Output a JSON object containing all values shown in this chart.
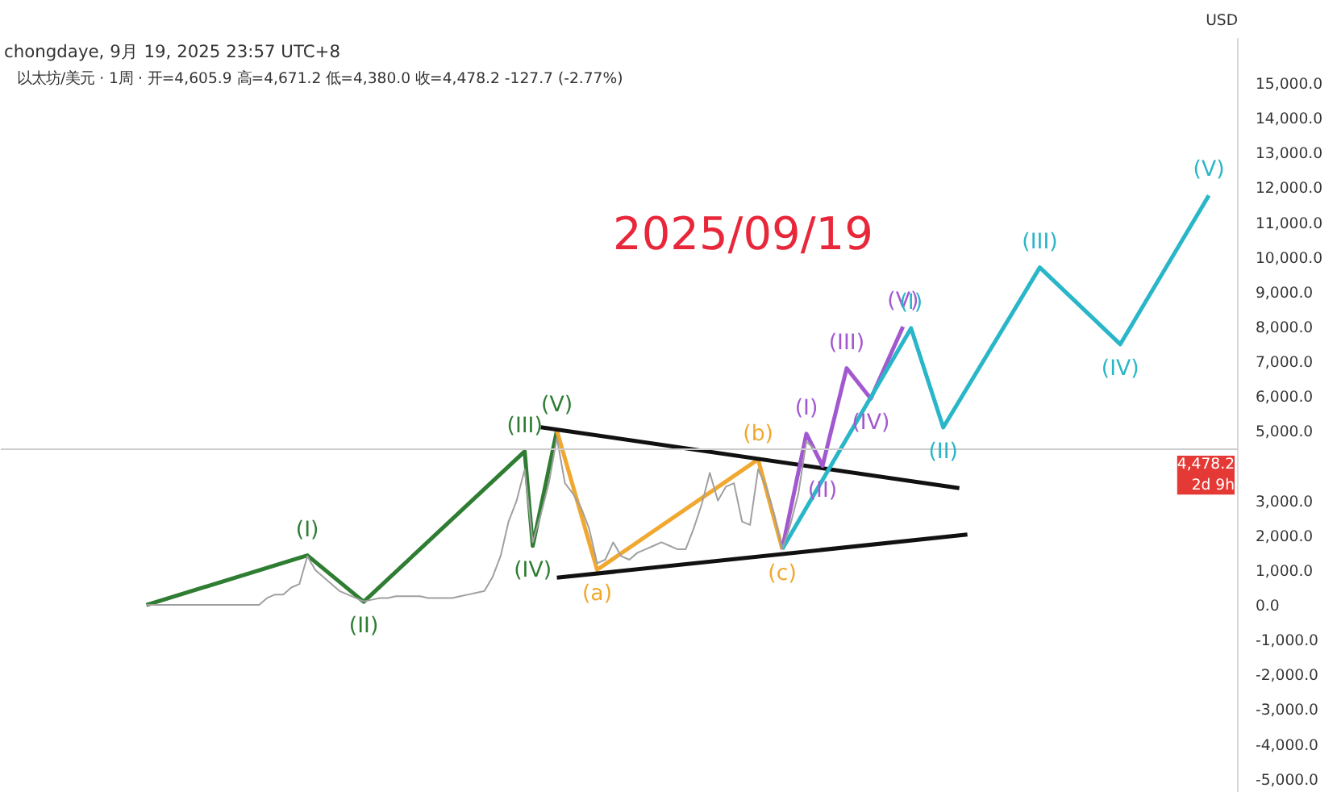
{
  "chart_data": {
    "type": "line",
    "title": "chongdaye, 9月 19, 2025 23:57 UTC+8",
    "subtitle": "以太坊/美元 · 1周 · 开=4,605.9 高=4,671.2 低=4,380.0 收=4,478.2 -127.7 (-2.77%)",
    "ylabel": "USD",
    "categories": [
      null,
      null,
      null,
      null,
      null,
      null,
      null,
      null,
      null,
      null,
      null,
      null,
      null,
      null,
      null,
      null,
      null,
      null,
      null,
      null,
      null,
      null,
      null,
      null,
      null,
      null,
      null,
      null,
      null,
      null,
      null,
      null,
      null,
      null,
      null,
      null,
      null,
      null,
      null,
      null,
      null,
      null,
      null,
      null,
      null,
      null,
      null,
      null,
      null,
      null,
      null,
      null,
      null,
      null,
      null,
      null,
      null,
      null,
      null,
      null,
      null,
      null,
      null,
      null,
      null,
      null,
      null,
      null,
      null,
      null,
      null,
      null,
      null,
      null,
      null,
      null,
      null,
      null,
      null,
      null,
      null,
      null,
      null,
      null,
      null,
      null,
      null,
      null,
      null,
      null,
      null,
      null,
      null,
      null,
      null,
      null,
      null,
      null,
      null,
      null,
      null,
      null,
      null,
      null,
      null,
      null,
      null,
      null,
      null,
      null,
      null,
      null,
      null,
      null,
      null,
      null,
      null,
      null,
      null,
      null,
      null,
      null,
      null,
      null,
      null,
      null,
      null,
      null,
      null,
      null,
      null,
      null,
      null,
      null
    ],
    "ylim": [
      -5400,
      16300
    ],
    "yticks": [
      {
        "value": -5000,
        "label": "-5,000.0"
      },
      {
        "value": -4000,
        "label": "-4,000.0"
      },
      {
        "value": -3000,
        "label": "-3,000.0"
      },
      {
        "value": -2000,
        "label": "-2,000.0"
      },
      {
        "value": -1000,
        "label": "-1,000.0"
      },
      {
        "value": 0,
        "label": "0.0"
      },
      {
        "value": 1000,
        "label": "1,000.0"
      },
      {
        "value": 2000,
        "label": "2,000.0"
      },
      {
        "value": 3000,
        "label": "3,000.0"
      },
      {
        "value": 5000,
        "label": "5,000.0"
      },
      {
        "value": 6000,
        "label": "6,000.0"
      },
      {
        "value": 7000,
        "label": "7,000.0"
      },
      {
        "value": 8000,
        "label": "8,000.0"
      },
      {
        "value": 9000,
        "label": "9,000.0"
      },
      {
        "value": 10000,
        "label": "10,000.0"
      },
      {
        "value": 11000,
        "label": "11,000.0"
      },
      {
        "value": 12000,
        "label": "12,000.0"
      },
      {
        "value": 13000,
        "label": "13,000.0"
      },
      {
        "value": 14000,
        "label": "14,000.0"
      },
      {
        "value": 15000,
        "label": "15,000.0"
      }
    ],
    "tick_labels": "y",
    "grid": false,
    "line_style": "solid",
    "series": [
      {
        "color": "#a0a0a0",
        "values": [
          0,
          0,
          0,
          0,
          0,
          0,
          0,
          0,
          0,
          0,
          0,
          0,
          0,
          0,
          0,
          200,
          300,
          300,
          500,
          600,
          1400,
          1000,
          800,
          600,
          400,
          300,
          200,
          100,
          150,
          200,
          200,
          250,
          250,
          250,
          250,
          200,
          200,
          200,
          200,
          250,
          300,
          350,
          400,
          800,
          1400,
          2400,
          3000,
          3900,
          1800,
          2600,
          3500,
          4800,
          3500,
          3200,
          2800,
          2200,
          1200,
          1300,
          1800,
          1400,
          1300,
          1500,
          1600,
          1700,
          1800,
          1700,
          1600,
          1600,
          2200,
          2900,
          3800,
          3000,
          3400,
          3500,
          2400,
          2300,
          3900,
          3400,
          2600,
          1600,
          2300,
          3200,
          4700,
          4478,
          null,
          null,
          null,
          null,
          null,
          null,
          null,
          null,
          null,
          null,
          null,
          null,
          null,
          null,
          null,
          null,
          null,
          null,
          null,
          null,
          null,
          null,
          null,
          null,
          null,
          null,
          null,
          null,
          null,
          null,
          null,
          null,
          null,
          null,
          null,
          null,
          null,
          null,
          null,
          null,
          null,
          null,
          null,
          null,
          null,
          null,
          null,
          null,
          null,
          null
        ]
      },
      {
        "color": "#2e7d32",
        "values": [
          0,
          null,
          null,
          null,
          null,
          null,
          null,
          null,
          null,
          null,
          null,
          null,
          null,
          null,
          null,
          null,
          null,
          null,
          null,
          null,
          1425,
          null,
          null,
          null,
          null,
          null,
          null,
          92,
          null,
          null,
          null,
          null,
          null,
          null,
          null,
          null,
          null,
          null,
          null,
          null,
          null,
          null,
          null,
          null,
          null,
          null,
          null,
          4414,
          1700,
          null,
          null,
          5011,
          null,
          null,
          null,
          null,
          null,
          null,
          null,
          null,
          null,
          null,
          null,
          null,
          null,
          null,
          null,
          null,
          null,
          null,
          null,
          null,
          null,
          null,
          null,
          null,
          null,
          null,
          null,
          null,
          null,
          null,
          null,
          null,
          null,
          null,
          null,
          null,
          null,
          null,
          null,
          null,
          null,
          null,
          null,
          null,
          null,
          null,
          null,
          null,
          null,
          null,
          null,
          null,
          null,
          null,
          null,
          null,
          null,
          null,
          null,
          null,
          null,
          null,
          null,
          null,
          null,
          null,
          null,
          null,
          null,
          null,
          null,
          null,
          null,
          null,
          null,
          null,
          null,
          null,
          null,
          null,
          null,
          null
        ]
      },
      {
        "color": "#f0a830",
        "values": [
          null,
          null,
          null,
          null,
          null,
          null,
          null,
          null,
          null,
          null,
          null,
          null,
          null,
          null,
          null,
          null,
          null,
          null,
          null,
          null,
          null,
          null,
          null,
          null,
          null,
          null,
          null,
          null,
          null,
          null,
          null,
          null,
          null,
          null,
          null,
          null,
          null,
          null,
          null,
          null,
          null,
          null,
          null,
          null,
          null,
          null,
          null,
          null,
          null,
          null,
          null,
          5011,
          null,
          null,
          null,
          null,
          1011,
          null,
          null,
          null,
          null,
          null,
          null,
          null,
          null,
          null,
          null,
          null,
          null,
          null,
          null,
          null,
          null,
          null,
          null,
          null,
          4184,
          null,
          null,
          1609,
          null,
          null,
          null,
          null,
          null,
          null,
          null,
          null,
          null,
          null,
          null,
          null,
          null,
          null,
          null,
          null,
          null,
          null,
          null,
          null,
          null,
          null,
          null,
          null,
          null,
          null,
          null,
          null,
          null,
          null,
          null,
          null,
          null,
          null,
          null,
          null,
          null,
          null,
          null,
          null,
          null,
          null,
          null,
          null,
          null,
          null,
          null,
          null,
          null,
          null,
          null,
          null,
          null,
          null
        ]
      },
      {
        "color": "#111111",
        "values": [
          null,
          null,
          null,
          null,
          null,
          null,
          null,
          null,
          null,
          null,
          null,
          null,
          null,
          null,
          null,
          null,
          null,
          null,
          null,
          null,
          null,
          null,
          null,
          null,
          null,
          null,
          null,
          null,
          null,
          null,
          null,
          null,
          null,
          null,
          null,
          null,
          null,
          null,
          null,
          null,
          null,
          null,
          null,
          null,
          null,
          null,
          null,
          null,
          null,
          5110,
          null,
          null,
          null,
          null,
          null,
          null,
          null,
          null,
          null,
          null,
          null,
          null,
          null,
          null,
          null,
          null,
          null,
          null,
          null,
          null,
          null,
          null,
          null,
          null,
          null,
          null,
          null,
          null,
          null,
          null,
          null,
          null,
          null,
          null,
          null,
          null,
          null,
          null,
          null,
          null,
          null,
          null,
          null,
          null,
          null,
          null,
          null,
          null,
          null,
          null,
          null,
          3356,
          null,
          null,
          null,
          null,
          null,
          null,
          null,
          null,
          null,
          null,
          null,
          null,
          null,
          null,
          null,
          null,
          null,
          null,
          null,
          null,
          null,
          null,
          null,
          null,
          null,
          null,
          null,
          null,
          null,
          null,
          null,
          null
        ]
      },
      {
        "color": "#111111",
        "values": [
          null,
          null,
          null,
          null,
          null,
          null,
          null,
          null,
          null,
          null,
          null,
          null,
          null,
          null,
          null,
          null,
          null,
          null,
          null,
          null,
          null,
          null,
          null,
          null,
          null,
          null,
          null,
          null,
          null,
          null,
          null,
          null,
          null,
          null,
          null,
          null,
          null,
          null,
          null,
          null,
          null,
          null,
          null,
          null,
          null,
          null,
          null,
          null,
          null,
          null,
          null,
          782,
          null,
          null,
          null,
          null,
          null,
          null,
          null,
          null,
          null,
          null,
          null,
          null,
          null,
          null,
          null,
          null,
          null,
          null,
          null,
          null,
          null,
          null,
          null,
          null,
          null,
          null,
          null,
          null,
          null,
          null,
          null,
          null,
          null,
          null,
          null,
          null,
          null,
          null,
          null,
          null,
          null,
          null,
          null,
          null,
          null,
          null,
          null,
          null,
          null,
          null,
          2023,
          null,
          null,
          null,
          null,
          null,
          null,
          null,
          null,
          null,
          null,
          null,
          null,
          null,
          null,
          null,
          null,
          null,
          null,
          null,
          null,
          null,
          null,
          null,
          null,
          null,
          null,
          null,
          null,
          null,
          null,
          null
        ]
      },
      {
        "color": "#a259d0",
        "values": [
          null,
          null,
          null,
          null,
          null,
          null,
          null,
          null,
          null,
          null,
          null,
          null,
          null,
          null,
          null,
          null,
          null,
          null,
          null,
          null,
          null,
          null,
          null,
          null,
          null,
          null,
          null,
          null,
          null,
          null,
          null,
          null,
          null,
          null,
          null,
          null,
          null,
          null,
          null,
          null,
          null,
          null,
          null,
          null,
          null,
          null,
          null,
          null,
          null,
          null,
          null,
          null,
          null,
          null,
          null,
          null,
          null,
          null,
          null,
          null,
          null,
          null,
          null,
          null,
          null,
          null,
          null,
          null,
          null,
          null,
          null,
          null,
          null,
          null,
          null,
          null,
          null,
          null,
          null,
          1609,
          null,
          null,
          4920,
          null,
          4000,
          null,
          null,
          6805,
          null,
          null,
          5931,
          null,
          null,
          null,
          8000,
          null,
          null,
          null,
          null,
          null,
          null,
          null,
          null,
          null,
          null,
          null,
          null,
          null,
          null,
          null,
          null,
          null,
          null,
          null,
          null,
          null,
          null,
          null,
          null,
          null,
          null,
          null,
          null,
          null,
          null,
          null,
          null,
          null,
          null,
          null,
          null,
          null,
          null,
          null
        ]
      },
      {
        "color": "#29b6c8",
        "values": [
          null,
          null,
          null,
          null,
          null,
          null,
          null,
          null,
          null,
          null,
          null,
          null,
          null,
          null,
          null,
          null,
          null,
          null,
          null,
          null,
          null,
          null,
          null,
          null,
          null,
          null,
          null,
          null,
          null,
          null,
          null,
          null,
          null,
          null,
          null,
          null,
          null,
          null,
          null,
          null,
          null,
          null,
          null,
          null,
          null,
          null,
          null,
          null,
          null,
          null,
          null,
          null,
          null,
          null,
          null,
          null,
          null,
          null,
          null,
          null,
          null,
          null,
          null,
          null,
          null,
          null,
          null,
          null,
          null,
          null,
          null,
          null,
          null,
          null,
          null,
          null,
          null,
          null,
          null,
          1609,
          null,
          null,
          null,
          null,
          null,
          null,
          null,
          null,
          null,
          null,
          null,
          null,
          null,
          null,
          null,
          7954,
          null,
          null,
          null,
          5103,
          null,
          null,
          null,
          null,
          null,
          null,
          null,
          null,
          null,
          null,
          null,
          9701,
          null,
          null,
          null,
          null,
          null,
          null,
          null,
          null,
          null,
          7494,
          null,
          null,
          null,
          null,
          null,
          null,
          null,
          null,
          null,
          null,
          11770,
          null
        ]
      }
    ],
    "ref_lines": [
      {
        "axis": "y",
        "value": 4478.2,
        "label": "4,478.2\n2d 9h"
      }
    ],
    "annotations": [
      "2025/09/19",
      {
        "text": "(I)",
        "y": 1425
      },
      {
        "text": "(II)",
        "y": 92
      },
      {
        "text": "(III)",
        "y": 4414
      },
      {
        "text": "(IV)",
        "y": 1700
      },
      {
        "text": "(V)",
        "y": 5011
      },
      {
        "text": "(a)",
        "y": 1011
      },
      {
        "text": "(b)",
        "y": 4184
      },
      {
        "text": "(c)",
        "y": 1609
      },
      {
        "text": "(I)",
        "y": 4920
      },
      {
        "text": "(II)",
        "y": 4000
      },
      {
        "text": "(III)",
        "y": 6805
      },
      {
        "text": "(IV)",
        "y": 5931
      },
      {
        "text": "(V)",
        "y": 8000
      },
      {
        "text": "(I)",
        "y": 7954
      },
      {
        "text": "(II)",
        "y": 5103
      },
      {
        "text": "(III)",
        "y": 9701
      },
      {
        "text": "(IV)",
        "y": 7494
      },
      {
        "text": "(V)",
        "y": 11770
      }
    ]
  }
}
